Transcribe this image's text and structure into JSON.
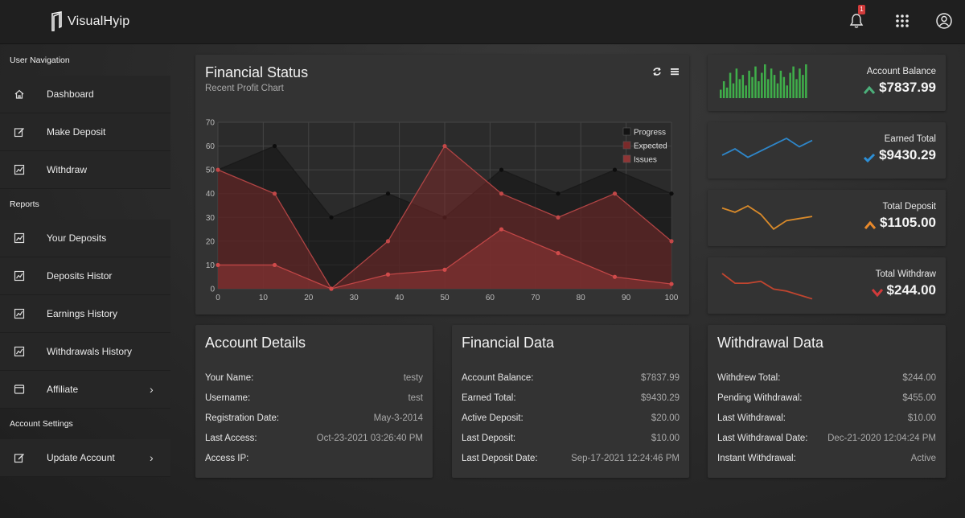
{
  "brand": {
    "name": "VisualHyip"
  },
  "topbar": {
    "notification_count": "1"
  },
  "sidebar": {
    "sections": [
      {
        "heading": "User Navigation",
        "items": [
          {
            "label": "Dashboard",
            "icon": "home-icon"
          },
          {
            "label": "Make Deposit",
            "icon": "edit-icon"
          },
          {
            "label": "Withdraw",
            "icon": "chart-icon"
          }
        ]
      },
      {
        "heading": "Reports",
        "items": [
          {
            "label": "Your Deposits",
            "icon": "chart-icon"
          },
          {
            "label": "Deposits Histor",
            "icon": "chart-icon"
          },
          {
            "label": "Earnings History",
            "icon": "chart-icon"
          },
          {
            "label": "Withdrawals History",
            "icon": "chart-icon"
          },
          {
            "label": "Affiliate",
            "icon": "window-icon",
            "chevron": "›"
          }
        ]
      },
      {
        "heading": "Account Settings",
        "items": [
          {
            "label": "Update Account",
            "icon": "edit-icon",
            "chevron": "›"
          }
        ]
      }
    ]
  },
  "financial_status": {
    "title": "Financial Status",
    "subtitle": "Recent Profit Chart",
    "tools": [
      "refresh-icon",
      "menu-icon"
    ]
  },
  "chart_data": {
    "type": "area",
    "x": [
      0,
      12.5,
      25,
      37.5,
      50,
      62.5,
      75,
      87.5,
      100
    ],
    "xticks": [
      0,
      10,
      20,
      30,
      40,
      50,
      60,
      70,
      80,
      90,
      100
    ],
    "yticks": [
      0,
      10,
      20,
      30,
      40,
      50,
      60,
      70
    ],
    "xlim": [
      0,
      100
    ],
    "ylim": [
      0,
      70
    ],
    "grid": true,
    "legend": "top-right",
    "series": [
      {
        "name": "Progress",
        "values": [
          50,
          60,
          30,
          40,
          30,
          50,
          40,
          50,
          40
        ],
        "color": "#111111"
      },
      {
        "name": "Expected",
        "values": [
          50,
          40,
          0,
          20,
          60,
          40,
          30,
          40,
          20
        ],
        "color": "#7a2e2e"
      },
      {
        "name": "Issues",
        "values": [
          10,
          10,
          0,
          6,
          8,
          25,
          15,
          5,
          2
        ],
        "color": "#a03a3a"
      }
    ]
  },
  "stats": [
    {
      "label": "Account Balance",
      "value": "$7837.99",
      "arrow": "up",
      "arrow_color": "#4caf7a",
      "spark_type": "bars",
      "spark_color": "#3fae4a",
      "spark": [
        4,
        8,
        5,
        12,
        7,
        14,
        9,
        11,
        6,
        13,
        10,
        15,
        8,
        12,
        16,
        9,
        14,
        11,
        7,
        13,
        10,
        6,
        12,
        15,
        9,
        14,
        11,
        16
      ]
    },
    {
      "label": "Earned Total",
      "value": "$9430.29",
      "arrow": "check",
      "arrow_color": "#2d8fd6",
      "spark_type": "line",
      "spark_color": "#2e86c9",
      "spark": [
        5,
        8,
        4,
        7,
        10,
        13,
        9,
        12
      ]
    },
    {
      "label": "Total Deposit",
      "value": "$1105.00",
      "arrow": "up",
      "arrow_color": "#e8892b",
      "spark_type": "line",
      "spark_color": "#d98a2a",
      "spark": [
        12,
        10,
        13,
        9,
        2,
        6,
        7,
        8
      ]
    },
    {
      "label": "Total Withdraw",
      "value": "$244.00",
      "arrow": "down",
      "arrow_color": "#d23b3b",
      "spark_type": "line",
      "spark_color": "#c0452f",
      "spark": [
        14,
        9,
        9,
        10,
        6,
        5,
        3,
        1
      ]
    }
  ],
  "account_details": {
    "title": "Account Details",
    "rows": [
      {
        "k": "Your Name:",
        "v": "testy"
      },
      {
        "k": "Username:",
        "v": "test"
      },
      {
        "k": "Registration Date:",
        "v": "May-3-2014"
      },
      {
        "k": "Last Access:",
        "v": "Oct-23-2021 03:26:40 PM"
      },
      {
        "k": "Access IP:",
        "v": ""
      }
    ]
  },
  "financial_data": {
    "title": "Financial Data",
    "rows": [
      {
        "k": "Account Balance:",
        "v": "$7837.99"
      },
      {
        "k": "Earned Total:",
        "v": "$9430.29"
      },
      {
        "k": "Active Deposit:",
        "v": "$20.00"
      },
      {
        "k": "Last Deposit:",
        "v": "$10.00"
      },
      {
        "k": "Last Deposit Date:",
        "v": "Sep-17-2021 12:24:46 PM"
      }
    ]
  },
  "withdrawal_data": {
    "title": "Withdrawal Data",
    "rows": [
      {
        "k": "Withdrew Total:",
        "v": "$244.00"
      },
      {
        "k": "Pending Withdrawal:",
        "v": "$455.00"
      },
      {
        "k": "Last Withdrawal:",
        "v": "$10.00"
      },
      {
        "k": "Last Withdrawal Date:",
        "v": "Dec-21-2020 12:04:24 PM"
      },
      {
        "k": "Instant Withdrawal:",
        "v": "Active"
      }
    ]
  }
}
